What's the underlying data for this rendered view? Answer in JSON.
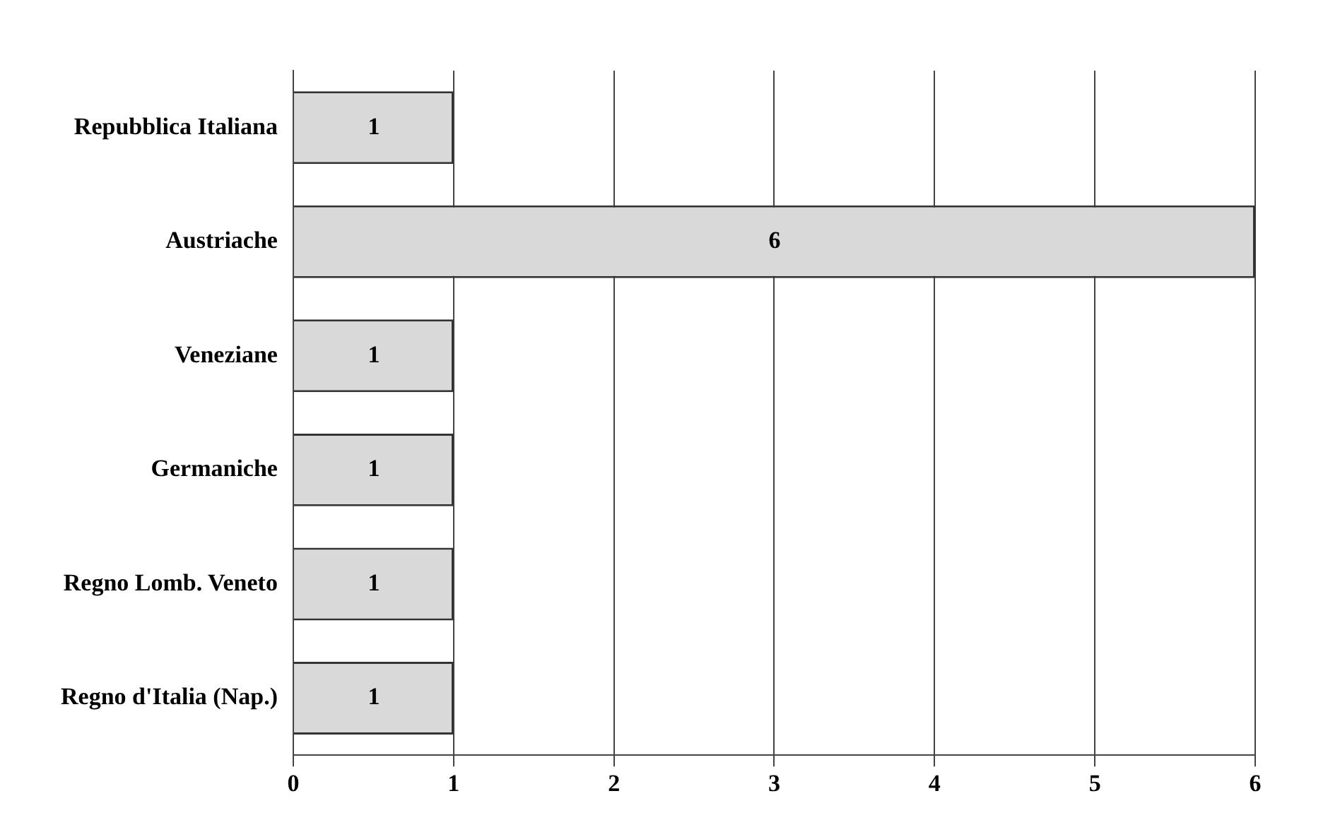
{
  "chart_data": {
    "type": "bar",
    "orientation": "horizontal",
    "categories": [
      "Repubblica Italiana",
      "Austriache",
      "Veneziane",
      "Germaniche",
      "Regno Lomb. Veneto",
      "Regno d'Italia (Nap.)"
    ],
    "values": [
      1,
      6,
      1,
      1,
      1,
      1
    ],
    "color": "#d9d9d9",
    "xlim": [
      0,
      6
    ],
    "xticks": [
      0,
      1,
      2,
      3,
      4,
      5,
      6
    ],
    "grid": "x",
    "data_labels": true,
    "legend": false
  }
}
